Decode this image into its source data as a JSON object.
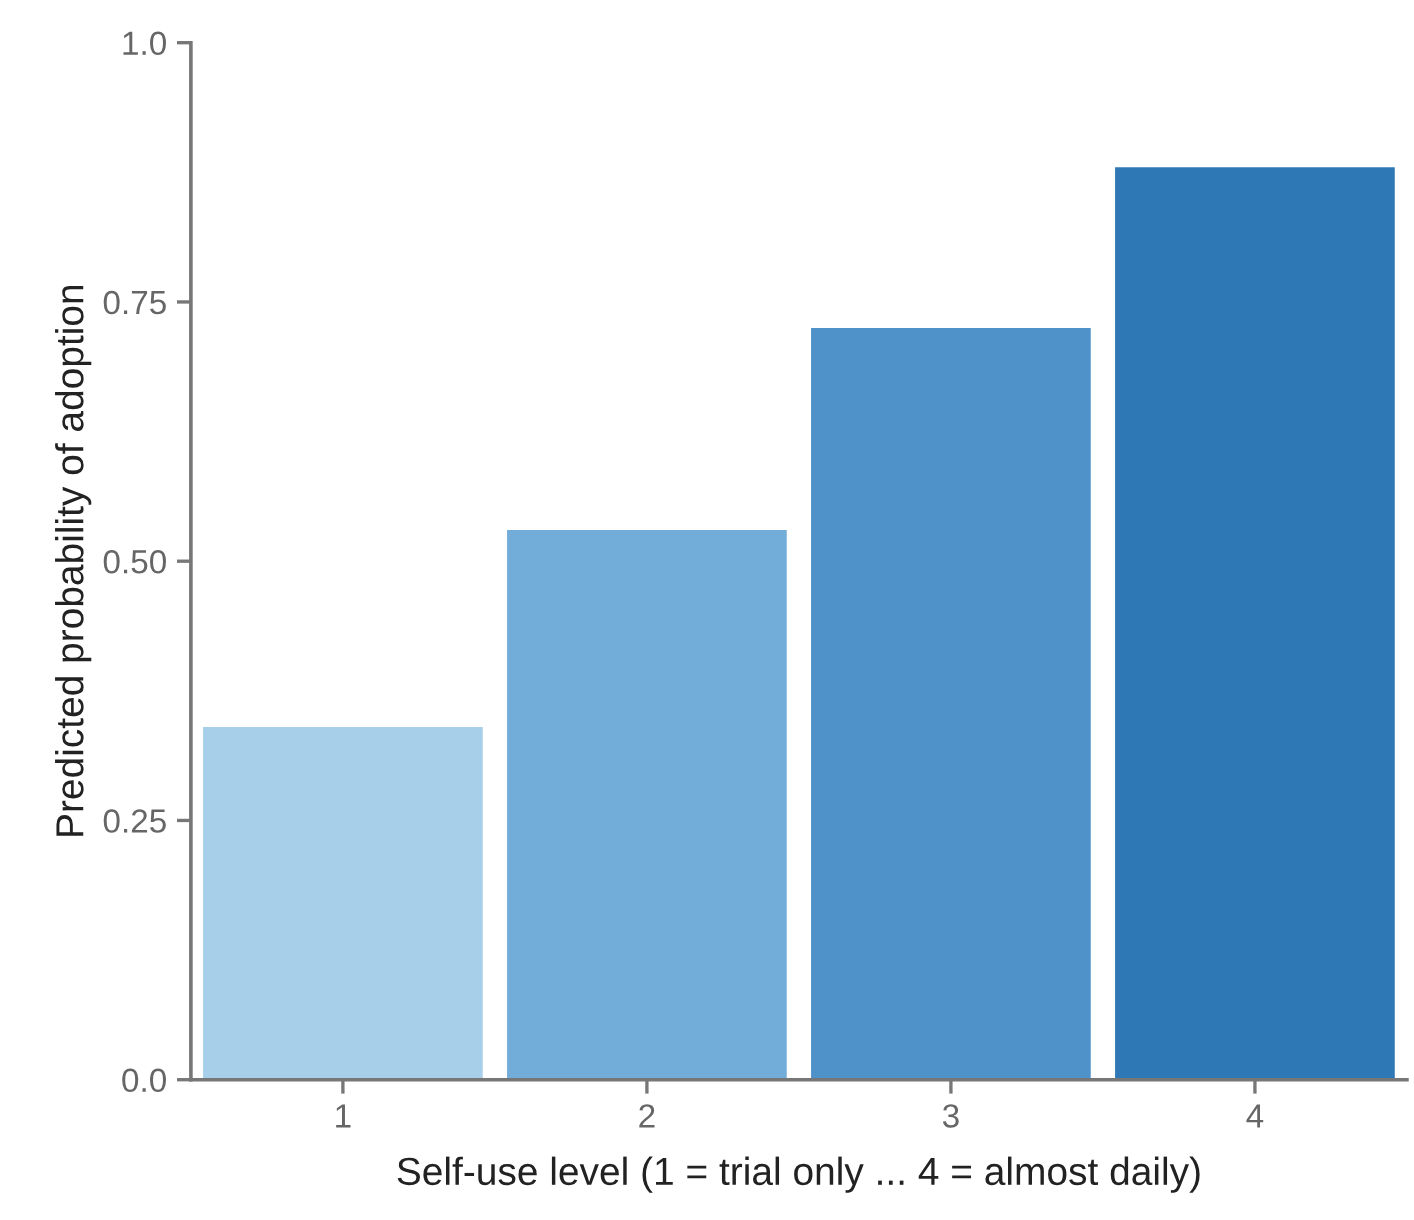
{
  "chart_data": {
    "type": "bar",
    "xlabel": "Self-use level (1 = trial only ... 4 = almost daily)",
    "ylabel": "Predicted probability of adoption",
    "categories": [
      "1",
      "2",
      "3",
      "4"
    ],
    "values": [
      0.34,
      0.53,
      0.725,
      0.88
    ],
    "colors": [
      "#a8cfe9",
      "#72acd8",
      "#4f92c9",
      "#2f78b6"
    ],
    "ylim": [
      0,
      1.0
    ],
    "yticks": [
      {
        "value": 0,
        "label": "0.0"
      },
      {
        "value": 0.25,
        "label": "0.25"
      },
      {
        "value": 0.5,
        "label": "0.50"
      },
      {
        "value": 0.75,
        "label": "0.75"
      },
      {
        "value": 1.0,
        "label": "1.0"
      }
    ],
    "grid": false
  }
}
